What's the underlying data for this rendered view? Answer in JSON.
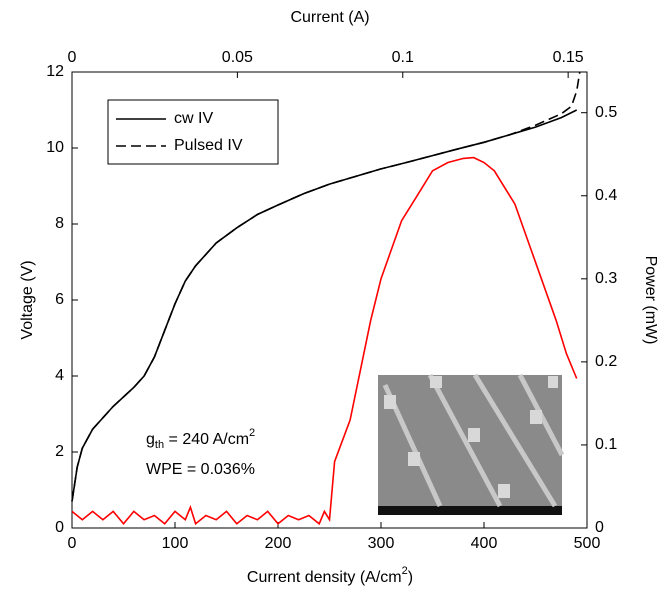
{
  "chart_data": {
    "type": "line",
    "xlabel": "Current density (A/cm",
    "xlabel_sup": "2",
    "xlabel_end": ")",
    "ylabel": "Voltage (V)",
    "y2label": "Power (mW)",
    "x2label": "Current (A)",
    "xlim": [
      0,
      500
    ],
    "xticks": [
      0,
      100,
      200,
      300,
      400,
      500
    ],
    "ylim": [
      0,
      12
    ],
    "yticks": [
      0,
      2,
      4,
      6,
      8,
      10,
      12
    ],
    "y2lim": [
      0,
      0.549
    ],
    "y2ticks": [
      0,
      0.1,
      0.2,
      0.3,
      0.4,
      0.5
    ],
    "x2lim": [
      0,
      0.1557
    ],
    "x2ticks": [
      0,
      0.05,
      0.1,
      0.15
    ],
    "grid": false,
    "legend": "upper left",
    "annotations": [
      {
        "g": "g",
        "sub": "th",
        "rest": " = 240 A/cm",
        "sup": "2"
      },
      {
        "text": "WPE = 0.036%"
      }
    ],
    "series": [
      {
        "name": "cw IV",
        "color": "#000000",
        "dash": "solid",
        "x": [
          0,
          5,
          10,
          20,
          40,
          60,
          70,
          80,
          90,
          100,
          110,
          120,
          140,
          160,
          180,
          200,
          225,
          250,
          275,
          300,
          325,
          350,
          375,
          400,
          425,
          450,
          475,
          490
        ],
        "values": [
          0.7,
          1.6,
          2.1,
          2.6,
          3.2,
          3.7,
          4.0,
          4.5,
          5.2,
          5.9,
          6.5,
          6.9,
          7.5,
          7.9,
          8.25,
          8.5,
          8.8,
          9.05,
          9.25,
          9.45,
          9.62,
          9.8,
          9.98,
          10.15,
          10.35,
          10.55,
          10.8,
          11.0
        ]
      },
      {
        "name": "Pulsed IV",
        "color": "#000000",
        "dash": "dashed",
        "x": [
          0,
          5,
          10,
          20,
          40,
          60,
          70,
          80,
          90,
          100,
          110,
          120,
          140,
          160,
          180,
          200,
          225,
          250,
          275,
          300,
          325,
          350,
          375,
          400,
          425,
          450,
          475,
          485,
          490,
          493
        ],
        "values": [
          0.7,
          1.6,
          2.1,
          2.6,
          3.2,
          3.7,
          4.0,
          4.5,
          5.2,
          5.9,
          6.5,
          6.9,
          7.5,
          7.9,
          8.25,
          8.5,
          8.8,
          9.05,
          9.25,
          9.45,
          9.62,
          9.8,
          9.98,
          10.15,
          10.35,
          10.6,
          10.9,
          11.1,
          11.5,
          12.0
        ]
      },
      {
        "color": "#ff0000",
        "dash": "solid",
        "axis": "y2",
        "x": [
          0,
          10,
          20,
          30,
          40,
          50,
          60,
          70,
          80,
          90,
          100,
          110,
          115,
          120,
          130,
          140,
          150,
          160,
          170,
          180,
          190,
          200,
          210,
          220,
          230,
          240,
          245,
          250,
          255,
          270,
          280,
          290,
          300,
          320,
          335,
          350,
          365,
          380,
          390,
          400,
          410,
          430,
          450,
          470,
          480,
          490
        ],
        "values": [
          0.02,
          0.01,
          0.02,
          0.01,
          0.02,
          0.005,
          0.02,
          0.01,
          0.015,
          0.005,
          0.02,
          0.01,
          0.025,
          0.005,
          0.015,
          0.01,
          0.02,
          0.005,
          0.015,
          0.01,
          0.02,
          0.005,
          0.015,
          0.01,
          0.015,
          0.005,
          0.02,
          0.01,
          0.08,
          0.13,
          0.19,
          0.25,
          0.3,
          0.37,
          0.4,
          0.43,
          0.44,
          0.445,
          0.446,
          0.44,
          0.43,
          0.39,
          0.32,
          0.25,
          0.21,
          0.18
        ]
      }
    ]
  }
}
